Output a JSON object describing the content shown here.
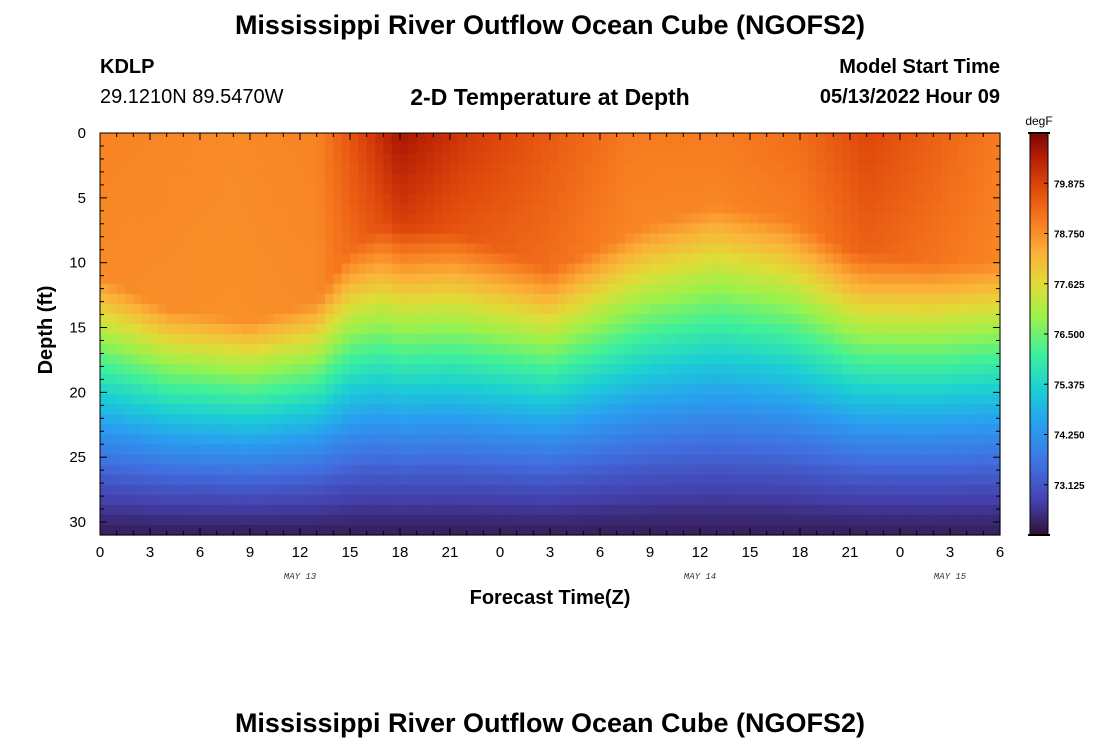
{
  "header": {
    "title": "Mississippi River Outflow Ocean Cube (NGOFS2)",
    "station": "KDLP",
    "coordinates": "29.1210N  89.5470W",
    "subtitle": "2-D Temperature at Depth",
    "model_start_label": "Model Start Time",
    "model_start_value": "05/13/2022 Hour 09"
  },
  "footer": {
    "title": "Mississippi River Outflow Ocean Cube (NGOFS2)"
  },
  "chart_data": {
    "type": "heatmap",
    "xlabel": "Forecast Time(Z)",
    "ylabel": "Depth (ft)",
    "x_range_hours": [
      0,
      54
    ],
    "x_tick_labels": [
      "0",
      "3",
      "6",
      "9",
      "12",
      "15",
      "18",
      "21",
      "0",
      "3",
      "6",
      "9",
      "12",
      "15",
      "18",
      "21",
      "0",
      "3",
      "6"
    ],
    "date_labels": [
      {
        "label": "MAY 13",
        "hour": 12
      },
      {
        "label": "MAY 14",
        "hour": 36
      },
      {
        "label": "MAY 15",
        "hour": 51
      }
    ],
    "y_range_ft": [
      0,
      31
    ],
    "y_reversed": true,
    "y_tick_labels": [
      "0",
      "5",
      "10",
      "15",
      "20",
      "25",
      "30"
    ],
    "y_tick_values": [
      0,
      5,
      10,
      15,
      20,
      25,
      30
    ],
    "colorbar": {
      "unit": "degF",
      "min": 72.0,
      "max": 81.0,
      "tick_labels": [
        "79.875",
        "78.750",
        "77.625",
        "76.500",
        "75.375",
        "74.250",
        "73.125"
      ],
      "tick_values": [
        79.875,
        78.75,
        77.625,
        76.5,
        75.375,
        74.25,
        73.125
      ]
    },
    "thermocline_depth_ft_by_hour": {
      "hours": [
        0,
        4,
        9,
        13,
        15,
        17,
        21,
        27,
        33,
        37,
        41,
        45,
        50,
        54
      ],
      "depth_ft": [
        15,
        17.5,
        18.5,
        17,
        13,
        11,
        11.5,
        14.5,
        11,
        9.5,
        10.5,
        13,
        14,
        14
      ]
    },
    "surface_temp_degF_by_hour": {
      "hours": [
        0,
        8,
        13,
        16,
        18,
        22,
        27,
        32,
        37,
        42,
        46,
        50,
        54
      ],
      "temp_degF": [
        78.9,
        78.8,
        78.9,
        79.9,
        80.6,
        80.0,
        79.5,
        79.0,
        79.0,
        79.2,
        79.8,
        79.4,
        79.0
      ]
    },
    "bottom_temp_degF": 72.2,
    "grid": false,
    "legend": "colorbar-right"
  }
}
